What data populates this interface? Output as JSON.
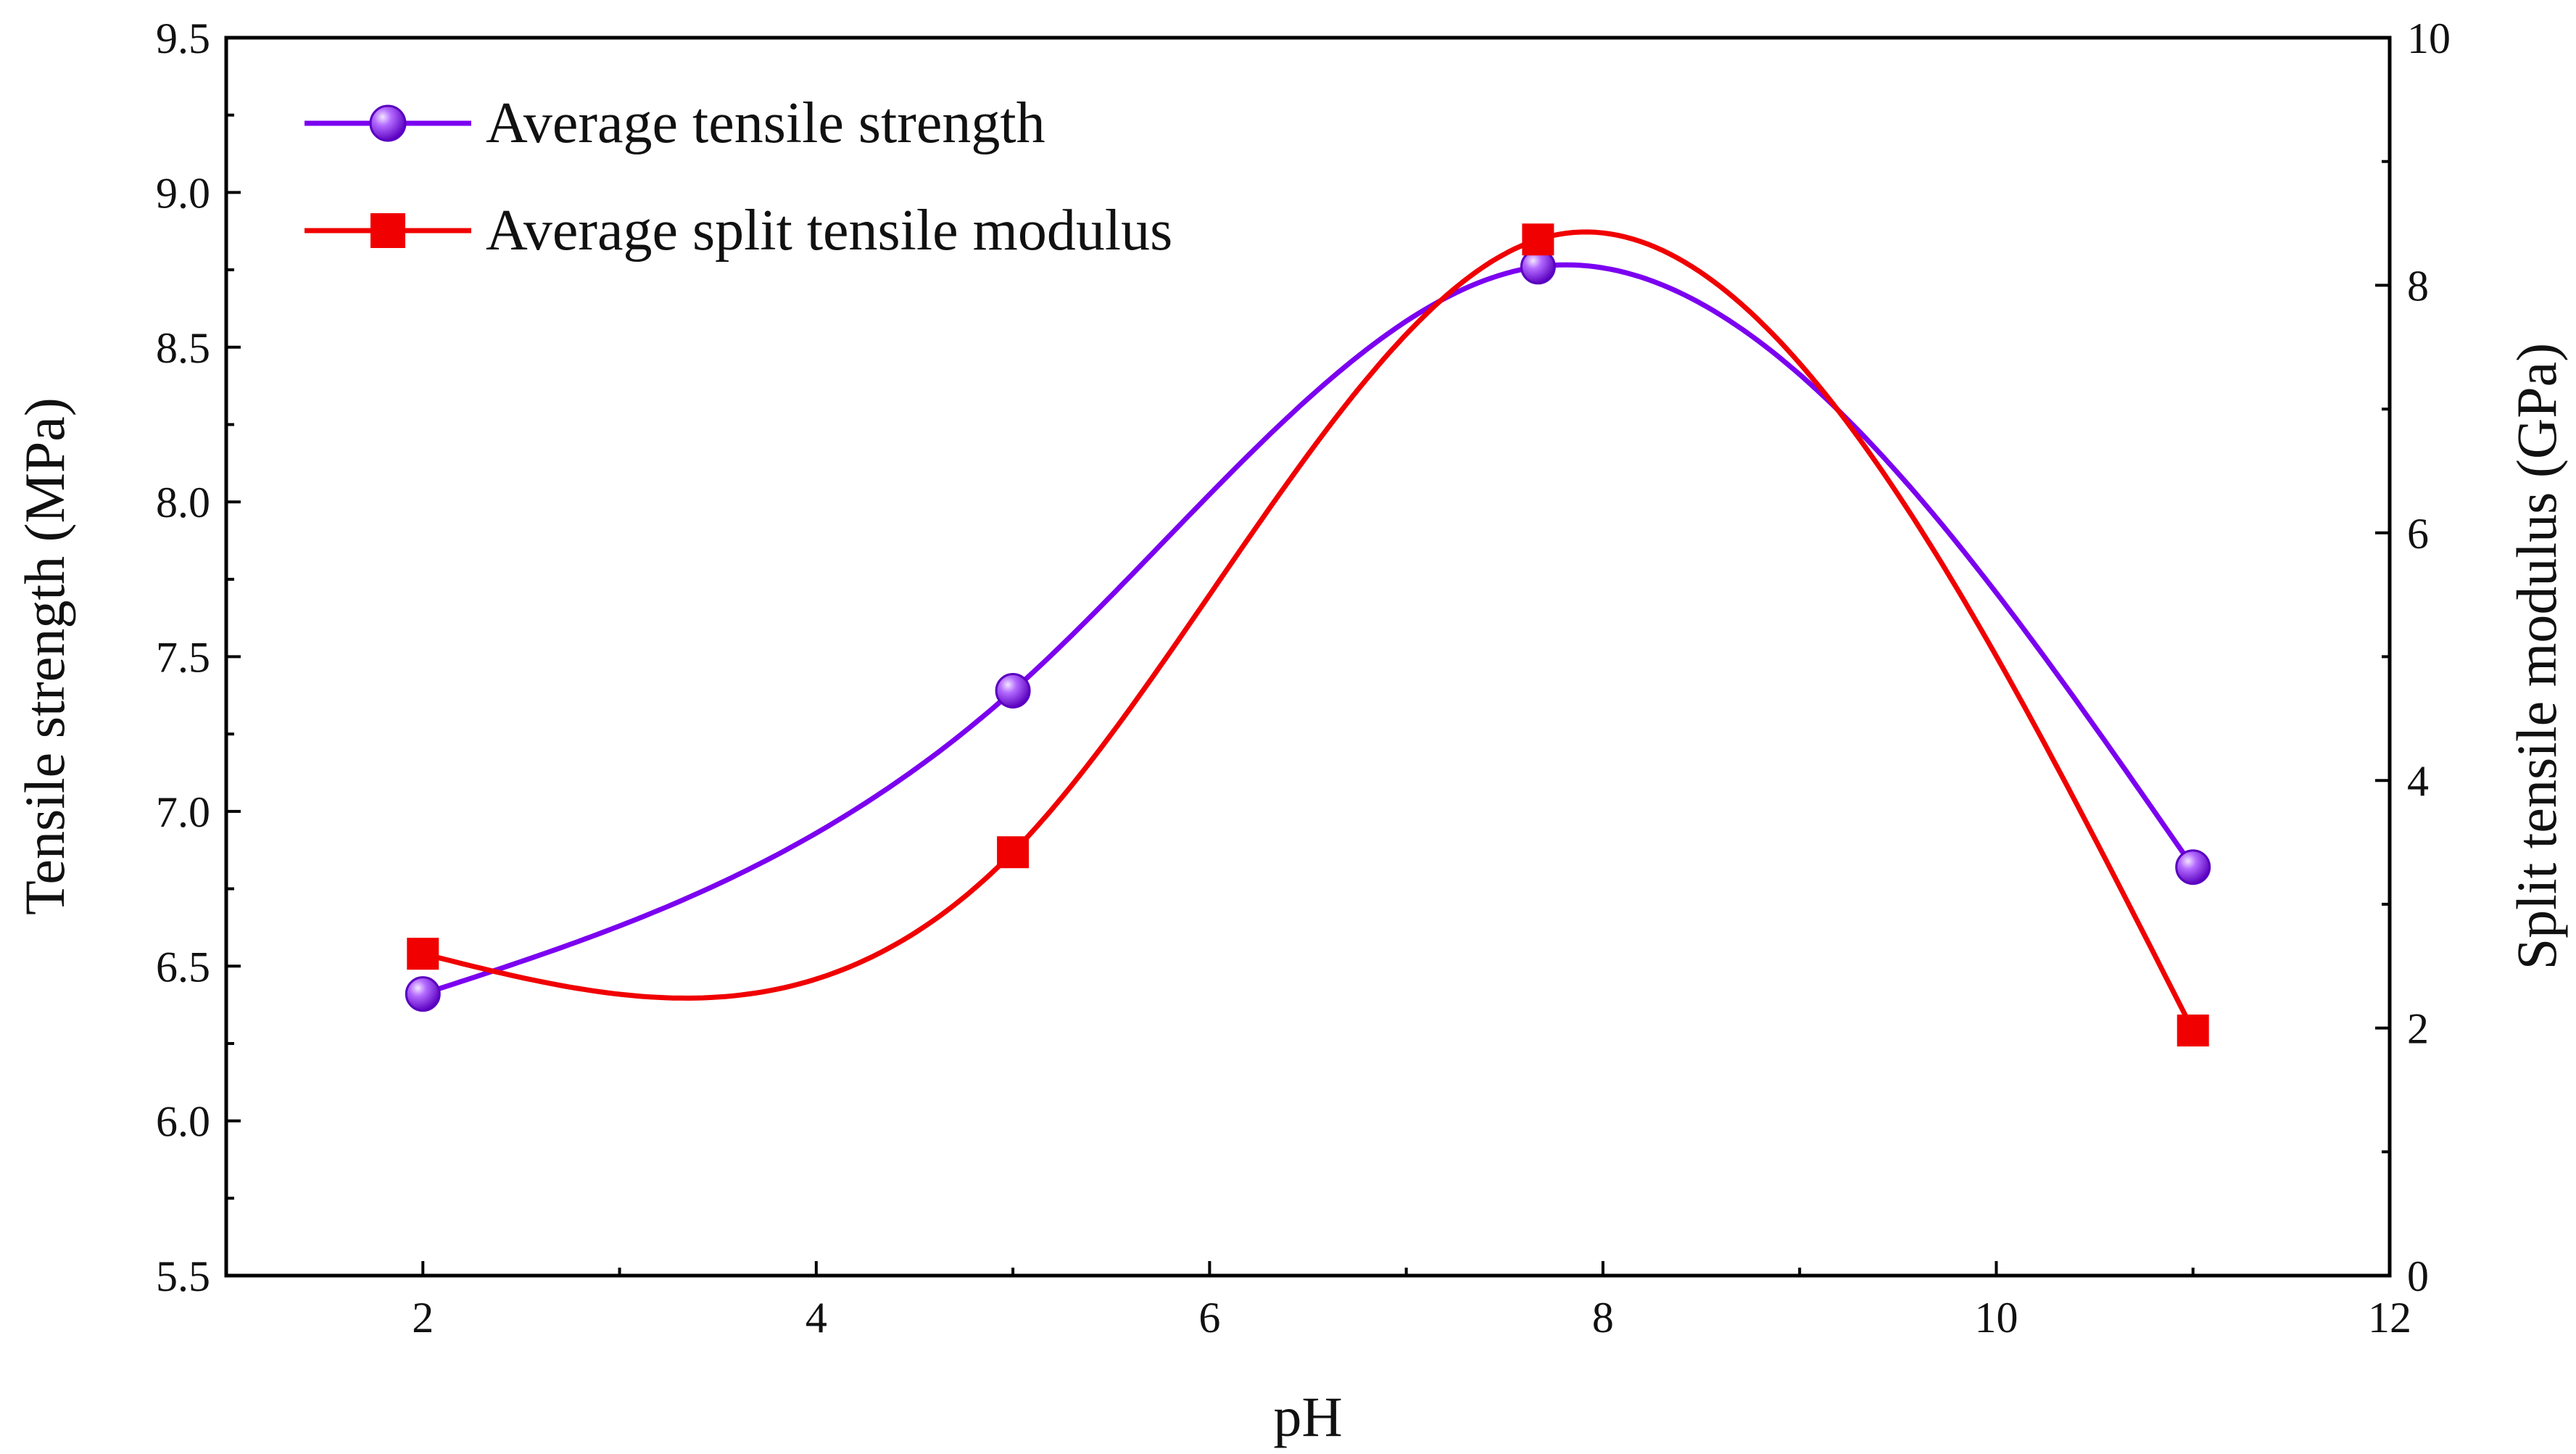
{
  "chart_data": {
    "type": "line",
    "title": "",
    "xlabel": "pH",
    "ylabel": "Tensile strength (MPa)",
    "y2label": "Split tensile modulus (GPa)",
    "xlim": [
      1,
      12
    ],
    "ylim": [
      5.5,
      9.5
    ],
    "y2lim": [
      0,
      10
    ],
    "xticks": [
      "2",
      "4",
      "6",
      "8",
      "10",
      "12"
    ],
    "yticks": [
      "5.5",
      "6.0",
      "6.5",
      "7.0",
      "7.5",
      "8.0",
      "8.5",
      "9.0",
      "9.5"
    ],
    "y2ticks": [
      "0",
      "2",
      "4",
      "6",
      "8",
      "10"
    ],
    "legend_position": "top-left",
    "series": [
      {
        "name": "Average tensile strength",
        "axis": "left",
        "marker": "circle",
        "color": "#7B00F0",
        "x": [
          2,
          5,
          7.67,
          11
        ],
        "y": [
          6.41,
          7.39,
          8.76,
          6.82
        ]
      },
      {
        "name": "Average split tensile modulus",
        "axis": "right",
        "marker": "square",
        "color": "#F00000",
        "x": [
          2,
          5,
          7.67,
          11
        ],
        "y": [
          2.6,
          3.42,
          8.37,
          1.98
        ]
      }
    ]
  }
}
